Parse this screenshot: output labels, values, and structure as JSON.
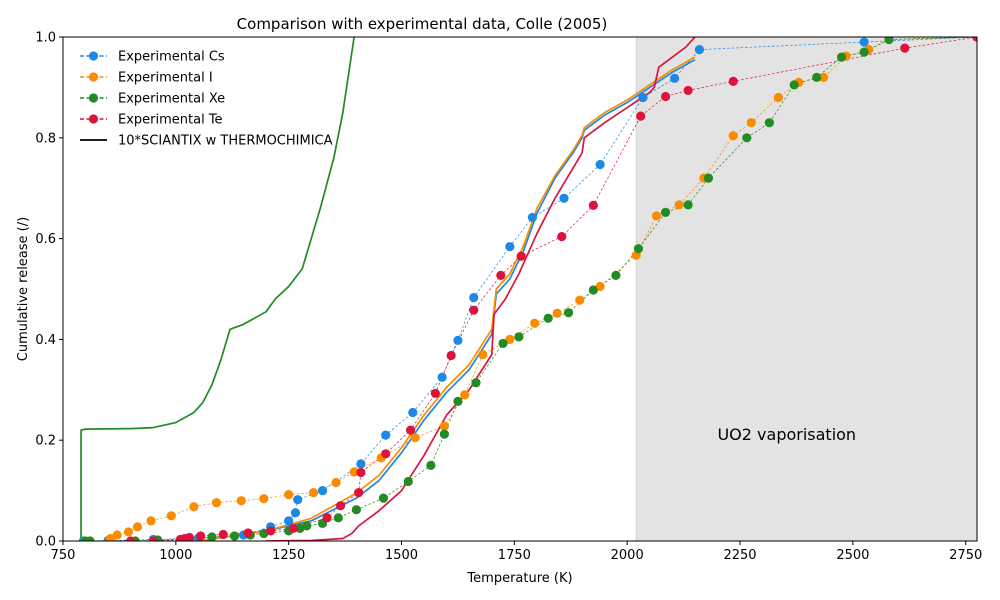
{
  "chart_data": {
    "type": "line",
    "title": "Comparison with experimental data, Colle (2005)",
    "xlabel": "Temperature (K)",
    "ylabel": "Cumulative release (/)",
    "xlim": [
      750,
      2775
    ],
    "ylim": [
      0,
      1.0
    ],
    "xticks": [
      750,
      1000,
      1250,
      1500,
      1750,
      2000,
      2250,
      2500,
      2750
    ],
    "yticks": [
      0.0,
      0.2,
      0.4,
      0.6,
      0.8,
      1.0
    ],
    "grid": false,
    "legend_position": "top-left",
    "shaded_region": {
      "x_start": 2020,
      "x_end": 2775,
      "label": "UO2 vaporisation",
      "label_x": 2200,
      "label_y": 0.2,
      "color": "#e3e3e3"
    },
    "legend": [
      {
        "label": "Experimental Cs",
        "color": "#1e88e5",
        "style": "dashed-marker"
      },
      {
        "label": "Experimental I",
        "color": "#fb8c00",
        "style": "dashed-marker"
      },
      {
        "label": "Experimental Xe",
        "color": "#228b22",
        "style": "dashed-marker"
      },
      {
        "label": "Experimental Te",
        "color": "#dc143c",
        "style": "dashed-marker"
      },
      {
        "label": "10*SCIANTIX w THERMOCHIMICA",
        "color": "#000000",
        "style": "solid"
      }
    ],
    "series": [
      {
        "name": "Experimental Cs",
        "color": "#1e88e5",
        "kind": "experimental",
        "points": [
          [
            795,
            0.0
          ],
          [
            850,
            0.001
          ],
          [
            950,
            0.003
          ],
          [
            1050,
            0.006
          ],
          [
            1150,
            0.012
          ],
          [
            1210,
            0.028
          ],
          [
            1250,
            0.04
          ],
          [
            1265,
            0.056
          ],
          [
            1270,
            0.082
          ],
          [
            1325,
            0.1
          ],
          [
            1410,
            0.153
          ],
          [
            1465,
            0.21
          ],
          [
            1525,
            0.255
          ],
          [
            1590,
            0.325
          ],
          [
            1625,
            0.398
          ],
          [
            1660,
            0.483
          ],
          [
            1740,
            0.584
          ],
          [
            1790,
            0.642
          ],
          [
            1860,
            0.68
          ],
          [
            1940,
            0.747
          ],
          [
            2035,
            0.88
          ],
          [
            2105,
            0.918
          ],
          [
            2160,
            0.975
          ],
          [
            2525,
            0.99
          ],
          [
            2775,
            1.0
          ]
        ]
      },
      {
        "name": "Experimental I",
        "color": "#fb8c00",
        "kind": "experimental",
        "points": [
          [
            855,
            0.005
          ],
          [
            870,
            0.012
          ],
          [
            895,
            0.018
          ],
          [
            915,
            0.028
          ],
          [
            945,
            0.04
          ],
          [
            990,
            0.05
          ],
          [
            1040,
            0.068
          ],
          [
            1090,
            0.076
          ],
          [
            1145,
            0.08
          ],
          [
            1195,
            0.084
          ],
          [
            1250,
            0.092
          ],
          [
            1305,
            0.096
          ],
          [
            1355,
            0.116
          ],
          [
            1395,
            0.137
          ],
          [
            1455,
            0.165
          ],
          [
            1530,
            0.205
          ],
          [
            1595,
            0.228
          ],
          [
            1640,
            0.29
          ],
          [
            1680,
            0.37
          ],
          [
            1740,
            0.4
          ],
          [
            1795,
            0.432
          ],
          [
            1845,
            0.452
          ],
          [
            1895,
            0.478
          ],
          [
            1940,
            0.505
          ],
          [
            2020,
            0.567
          ],
          [
            2065,
            0.645
          ],
          [
            2115,
            0.667
          ],
          [
            2170,
            0.72
          ],
          [
            2235,
            0.804
          ],
          [
            2275,
            0.83
          ],
          [
            2335,
            0.88
          ],
          [
            2380,
            0.91
          ],
          [
            2435,
            0.92
          ],
          [
            2485,
            0.962
          ],
          [
            2535,
            0.975
          ],
          [
            2580,
            0.995
          ],
          [
            2775,
            1.0
          ]
        ]
      },
      {
        "name": "Experimental Xe",
        "color": "#228b22",
        "kind": "experimental",
        "points": [
          [
            800,
            0.0
          ],
          [
            810,
            0.0
          ],
          [
            910,
            0.0
          ],
          [
            960,
            0.002
          ],
          [
            1030,
            0.005
          ],
          [
            1080,
            0.008
          ],
          [
            1130,
            0.01
          ],
          [
            1165,
            0.012
          ],
          [
            1195,
            0.015
          ],
          [
            1250,
            0.02
          ],
          [
            1275,
            0.025
          ],
          [
            1290,
            0.03
          ],
          [
            1325,
            0.035
          ],
          [
            1360,
            0.046
          ],
          [
            1400,
            0.062
          ],
          [
            1460,
            0.085
          ],
          [
            1515,
            0.118
          ],
          [
            1565,
            0.15
          ],
          [
            1595,
            0.212
          ],
          [
            1625,
            0.277
          ],
          [
            1665,
            0.314
          ],
          [
            1725,
            0.392
          ],
          [
            1760,
            0.405
          ],
          [
            1825,
            0.442
          ],
          [
            1870,
            0.453
          ],
          [
            1925,
            0.498
          ],
          [
            1975,
            0.527
          ],
          [
            2025,
            0.58
          ],
          [
            2085,
            0.652
          ],
          [
            2135,
            0.667
          ],
          [
            2180,
            0.72
          ],
          [
            2265,
            0.8
          ],
          [
            2315,
            0.83
          ],
          [
            2370,
            0.905
          ],
          [
            2420,
            0.92
          ],
          [
            2475,
            0.96
          ],
          [
            2525,
            0.97
          ],
          [
            2580,
            0.995
          ],
          [
            2775,
            1.0
          ]
        ]
      },
      {
        "name": "Experimental Te",
        "color": "#dc143c",
        "kind": "experimental",
        "points": [
          [
            900,
            0.0
          ],
          [
            950,
            0.0
          ],
          [
            1010,
            0.003
          ],
          [
            1020,
            0.005
          ],
          [
            1030,
            0.007
          ],
          [
            1055,
            0.01
          ],
          [
            1105,
            0.013
          ],
          [
            1160,
            0.016
          ],
          [
            1210,
            0.02
          ],
          [
            1260,
            0.025
          ],
          [
            1335,
            0.046
          ],
          [
            1365,
            0.07
          ],
          [
            1405,
            0.096
          ],
          [
            1410,
            0.136
          ],
          [
            1465,
            0.173
          ],
          [
            1520,
            0.22
          ],
          [
            1575,
            0.293
          ],
          [
            1610,
            0.368
          ],
          [
            1660,
            0.458
          ],
          [
            1720,
            0.527
          ],
          [
            1765,
            0.565
          ],
          [
            1855,
            0.604
          ],
          [
            1925,
            0.666
          ],
          [
            2030,
            0.843
          ],
          [
            2085,
            0.882
          ],
          [
            2135,
            0.894
          ],
          [
            2235,
            0.912
          ],
          [
            2615,
            0.978
          ],
          [
            2775,
            1.0
          ]
        ]
      },
      {
        "name": "Model Cs",
        "color": "#1e88e5",
        "kind": "model",
        "points": [
          [
            1050,
            0.0
          ],
          [
            1200,
            0.02
          ],
          [
            1300,
            0.04
          ],
          [
            1400,
            0.085
          ],
          [
            1450,
            0.12
          ],
          [
            1500,
            0.175
          ],
          [
            1550,
            0.24
          ],
          [
            1600,
            0.295
          ],
          [
            1650,
            0.34
          ],
          [
            1700,
            0.41
          ],
          [
            1710,
            0.49
          ],
          [
            1740,
            0.52
          ],
          [
            1770,
            0.575
          ],
          [
            1800,
            0.65
          ],
          [
            1840,
            0.72
          ],
          [
            1880,
            0.77
          ],
          [
            1900,
            0.8
          ],
          [
            1905,
            0.815
          ],
          [
            1950,
            0.845
          ],
          [
            2000,
            0.87
          ],
          [
            2050,
            0.9
          ],
          [
            2100,
            0.93
          ],
          [
            2130,
            0.945
          ],
          [
            2150,
            0.955
          ]
        ]
      },
      {
        "name": "Model I",
        "color": "#fb8c00",
        "kind": "model",
        "points": [
          [
            1050,
            0.0
          ],
          [
            1200,
            0.02
          ],
          [
            1300,
            0.045
          ],
          [
            1400,
            0.095
          ],
          [
            1450,
            0.13
          ],
          [
            1500,
            0.185
          ],
          [
            1550,
            0.25
          ],
          [
            1600,
            0.305
          ],
          [
            1650,
            0.35
          ],
          [
            1700,
            0.42
          ],
          [
            1710,
            0.5
          ],
          [
            1740,
            0.53
          ],
          [
            1770,
            0.585
          ],
          [
            1800,
            0.66
          ],
          [
            1840,
            0.725
          ],
          [
            1880,
            0.775
          ],
          [
            1900,
            0.805
          ],
          [
            1905,
            0.82
          ],
          [
            1950,
            0.85
          ],
          [
            2000,
            0.875
          ],
          [
            2050,
            0.905
          ],
          [
            2100,
            0.935
          ],
          [
            2130,
            0.95
          ],
          [
            2150,
            0.96
          ]
        ]
      },
      {
        "name": "Model Te",
        "color": "#dc143c",
        "kind": "model",
        "points": [
          [
            1200,
            0.0
          ],
          [
            1300,
            0.001
          ],
          [
            1370,
            0.005
          ],
          [
            1390,
            0.015
          ],
          [
            1405,
            0.03
          ],
          [
            1450,
            0.06
          ],
          [
            1500,
            0.1
          ],
          [
            1550,
            0.17
          ],
          [
            1600,
            0.25
          ],
          [
            1650,
            0.3
          ],
          [
            1700,
            0.37
          ],
          [
            1705,
            0.45
          ],
          [
            1730,
            0.48
          ],
          [
            1760,
            0.53
          ],
          [
            1800,
            0.61
          ],
          [
            1840,
            0.68
          ],
          [
            1880,
            0.74
          ],
          [
            1900,
            0.77
          ],
          [
            1905,
            0.8
          ],
          [
            1950,
            0.83
          ],
          [
            2000,
            0.86
          ],
          [
            2050,
            0.89
          ],
          [
            2060,
            0.9
          ],
          [
            2070,
            0.94
          ],
          [
            2100,
            0.96
          ],
          [
            2130,
            0.98
          ],
          [
            2150,
            1.0
          ]
        ]
      },
      {
        "name": "Model Xe",
        "color": "#228b22",
        "kind": "model",
        "points": [
          [
            790,
            0.0
          ],
          [
            790,
            0.22
          ],
          [
            800,
            0.222
          ],
          [
            900,
            0.223
          ],
          [
            950,
            0.225
          ],
          [
            1000,
            0.235
          ],
          [
            1040,
            0.255
          ],
          [
            1060,
            0.275
          ],
          [
            1080,
            0.31
          ],
          [
            1100,
            0.36
          ],
          [
            1120,
            0.42
          ],
          [
            1150,
            0.43
          ],
          [
            1200,
            0.455
          ],
          [
            1220,
            0.48
          ],
          [
            1250,
            0.505
          ],
          [
            1280,
            0.54
          ],
          [
            1300,
            0.6
          ],
          [
            1320,
            0.66
          ],
          [
            1350,
            0.76
          ],
          [
            1370,
            0.85
          ],
          [
            1385,
            0.94
          ],
          [
            1395,
            1.0
          ]
        ]
      }
    ]
  }
}
